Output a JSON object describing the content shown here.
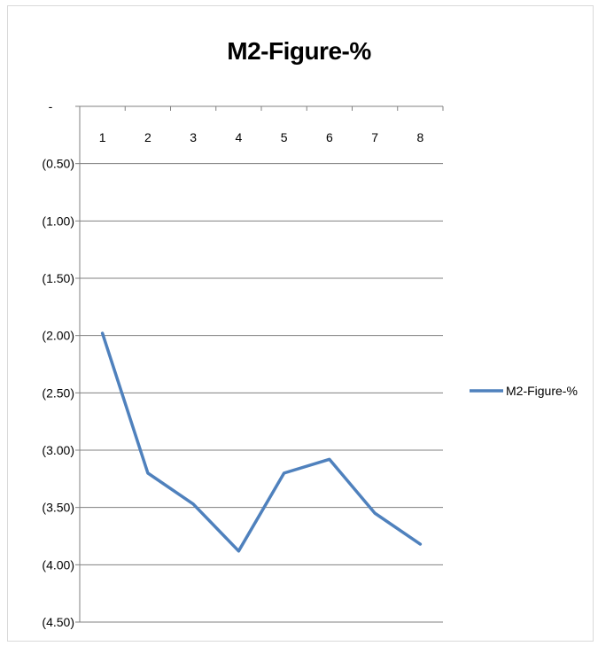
{
  "chart_data": {
    "type": "line",
    "title": "M2-Figure-%",
    "xlabel": "",
    "ylabel": "",
    "categories": [
      "1",
      "2",
      "3",
      "4",
      "5",
      "6",
      "7",
      "8"
    ],
    "series": [
      {
        "name": "M2-Figure-%",
        "color": "#4f81bd",
        "values": [
          -1.98,
          -3.2,
          -3.47,
          -3.88,
          -3.2,
          -3.08,
          -3.55,
          -3.82
        ]
      }
    ],
    "ylim": [
      -4.5,
      0
    ],
    "y_ticks": [
      {
        "value": 0,
        "label": "-"
      },
      {
        "value": -0.5,
        "label": "(0.50)"
      },
      {
        "value": -1.0,
        "label": "(1.00)"
      },
      {
        "value": -1.5,
        "label": "(1.50)"
      },
      {
        "value": -2.0,
        "label": "(2.00)"
      },
      {
        "value": -2.5,
        "label": "(2.50)"
      },
      {
        "value": -3.0,
        "label": "(3.00)"
      },
      {
        "value": -3.5,
        "label": "(3.50)"
      },
      {
        "value": -4.0,
        "label": "(4.00)"
      },
      {
        "value": -4.5,
        "label": "(4.50)"
      }
    ],
    "x_axis_position": "top",
    "grid": true,
    "legend_position": "right"
  }
}
